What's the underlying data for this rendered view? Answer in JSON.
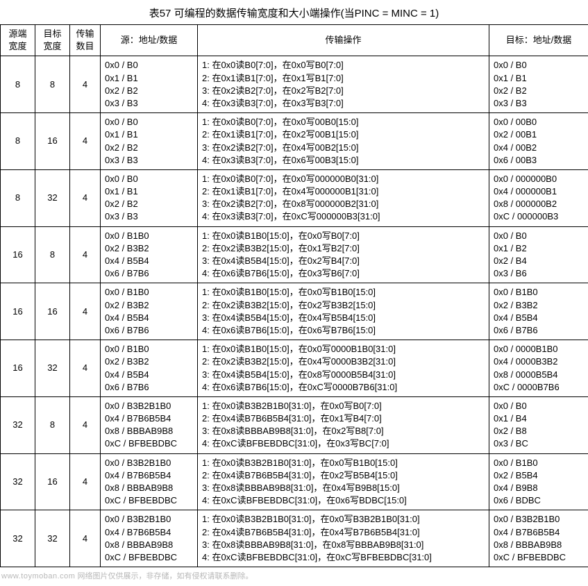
{
  "title": "表57    可编程的数据传输宽度和大小端操作(当PINC = MINC = 1)",
  "headers": {
    "c1": "源端\n宽度",
    "c2": "目标\n宽度",
    "c3": "传输\n数目",
    "c4": "源：地址/数据",
    "c5": "传输操作",
    "c6": "目标：地址/数据"
  },
  "rows": [
    {
      "src": "8",
      "dst": "8",
      "cnt": "4",
      "srcdata": "0x0 / B0\n0x1 / B1\n0x2 / B2\n0x3 / B3",
      "ops": "1: 在0x0读B0[7:0]，在0x0写B0[7:0]\n2: 在0x1读B1[7:0]，在0x1写B1[7:0]\n3: 在0x2读B2[7:0]，在0x2写B2[7:0]\n4: 在0x3读B3[7:0]，在0x3写B3[7:0]",
      "dstdata": "0x0 / B0\n0x1 / B1\n0x2 / B2\n0x3 / B3"
    },
    {
      "src": "8",
      "dst": "16",
      "cnt": "4",
      "srcdata": "0x0 / B0\n0x1 / B1\n0x2 / B2\n0x3 / B3",
      "ops": "1: 在0x0读B0[7:0]，在0x0写00B0[15:0]\n2: 在0x1读B1[7:0]，在0x2写00B1[15:0]\n3: 在0x2读B2[7:0]，在0x4写00B2[15:0]\n4: 在0x3读B3[7:0]，在0x6写00B3[15:0]",
      "dstdata": "0x0 / 00B0\n0x2 / 00B1\n0x4 / 00B2\n0x6 / 00B3"
    },
    {
      "src": "8",
      "dst": "32",
      "cnt": "4",
      "srcdata": "0x0 / B0\n0x1 / B1\n0x2 / B2\n0x3 / B3",
      "ops": "1: 在0x0读B0[7:0]，在0x0写000000B0[31:0]\n2: 在0x1读B1[7:0]，在0x4写000000B1[31:0]\n3: 在0x2读B2[7:0]，在0x8写000000B2[31:0]\n4: 在0x3读B3[7:0]，在0xC写000000B3[31:0]",
      "dstdata": "0x0 / 000000B0\n0x4 / 000000B1\n0x8 / 000000B2\n0xC / 000000B3"
    },
    {
      "src": "16",
      "dst": "8",
      "cnt": "4",
      "srcdata": "0x0 / B1B0\n0x2 / B3B2\n0x4 / B5B4\n0x6 / B7B6",
      "ops": "1: 在0x0读B1B0[15:0]，在0x0写B0[7:0]\n2: 在0x2读B3B2[15:0]，在0x1写B2[7:0]\n3: 在0x4读B5B4[15:0]，在0x2写B4[7:0]\n4: 在0x6读B7B6[15:0]，在0x3写B6[7:0]",
      "dstdata": "0x0 / B0\n0x1 / B2\n0x2 / B4\n0x3 / B6"
    },
    {
      "src": "16",
      "dst": "16",
      "cnt": "4",
      "srcdata": "0x0 / B1B0\n0x2 / B3B2\n0x4 / B5B4\n0x6 / B7B6",
      "ops": "1: 在0x0读B1B0[15:0]，在0x0写B1B0[15:0]\n2: 在0x2读B3B2[15:0]，在0x2写B3B2[15:0]\n3: 在0x4读B5B4[15:0]，在0x4写B5B4[15:0]\n4: 在0x6读B7B6[15:0]，在0x6写B7B6[15:0]",
      "dstdata": "0x0 / B1B0\n0x2 / B3B2\n0x4 / B5B4\n0x6 / B7B6"
    },
    {
      "src": "16",
      "dst": "32",
      "cnt": "4",
      "srcdata": "0x0 / B1B0\n0x2 / B3B2\n0x4 / B5B4\n0x6 / B7B6",
      "ops": "1: 在0x0读B1B0[15:0]，在0x0写0000B1B0[31:0]\n2: 在0x2读B3B2[15:0]，在0x4写0000B3B2[31:0]\n3: 在0x4读B5B4[15:0]，在0x8写0000B5B4[31:0]\n4: 在0x6读B7B6[15:0]，在0xC写0000B7B6[31:0]",
      "dstdata": "0x0 / 0000B1B0\n0x4 / 0000B3B2\n0x8 / 0000B5B4\n0xC / 0000B7B6"
    },
    {
      "src": "32",
      "dst": "8",
      "cnt": "4",
      "srcdata": "0x0 / B3B2B1B0\n0x4 / B7B6B5B4\n0x8 / BBBAB9B8\n0xC / BFBEBDBC",
      "ops": "1: 在0x0读B3B2B1B0[31:0]，在0x0写B0[7:0]\n2: 在0x4读B7B6B5B4[31:0]，在0x1写B4[7:0]\n3: 在0x8读BBBAB9B8[31:0]，在0x2写B8[7:0]\n4: 在0xC读BFBEBDBC[31:0]，在0x3写BC[7:0]",
      "dstdata": "0x0 / B0\n0x1 / B4\n0x2 / B8\n0x3 / BC"
    },
    {
      "src": "32",
      "dst": "16",
      "cnt": "4",
      "srcdata": "0x0 / B3B2B1B0\n0x4 / B7B6B5B4\n0x8 / BBBAB9B8\n0xC / BFBEBDBC",
      "ops": "1: 在0x0读B3B2B1B0[31:0]，在0x0写B1B0[15:0]\n2: 在0x4读B7B6B5B4[31:0]，在0x2写B5B4[15:0]\n3: 在0x8读BBBAB9B8[31:0]，在0x4写B9B8[15:0]\n4: 在0xC读BFBEBDBC[31:0]，在0x6写BDBC[15:0]",
      "dstdata": "0x0 / B1B0\n0x2 / B5B4\n0x4 / B9B8\n0x6 / BDBC"
    },
    {
      "src": "32",
      "dst": "32",
      "cnt": "4",
      "srcdata": "0x0 / B3B2B1B0\n0x4 / B7B6B5B4\n0x8 / BBBAB9B8\n0xC / BFBEBDBC",
      "ops": "1: 在0x0读B3B2B1B0[31:0]，在0x0写B3B2B1B0[31:0]\n2: 在0x4读B7B6B5B4[31:0]，在0x4写B7B6B5B4[31:0]\n3: 在0x8读BBBAB9B8[31:0]，在0x8写BBBAB9B8[31:0]\n4: 在0xC读BFBEBDBC[31:0]，在0xC写BFBEBDBC[31:0]",
      "dstdata": "0x0 / B3B2B1B0\n0x4 / B7B6B5B4\n0x8 / BBBAB9B8\n0xC / BFBEBDBC"
    }
  ],
  "footer": {
    "domain": "www.toymoban.com",
    "note": "网络图片仅供展示，非存储，如有侵权请联系删除。"
  }
}
